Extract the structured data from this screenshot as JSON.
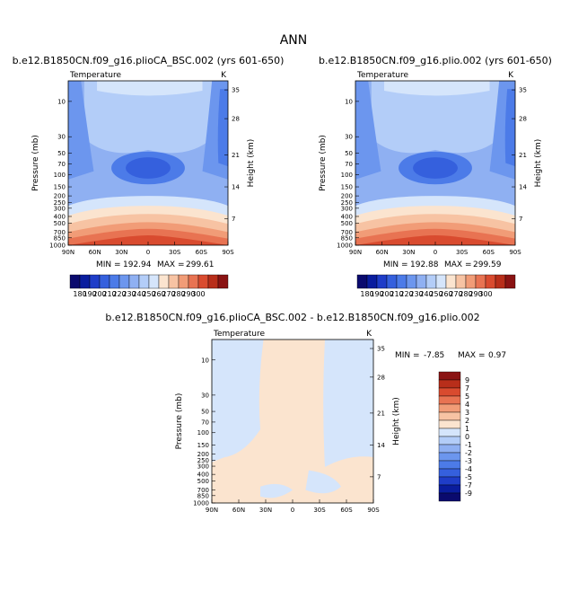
{
  "figure": {
    "title": "ANN",
    "colors": {
      "scale_main": [
        "#0a0a6e",
        "#0a1d9e",
        "#1f3dc8",
        "#3560dd",
        "#4c7be8",
        "#6c96ee",
        "#8fb0f2",
        "#b3cdf8",
        "#d5e5fb",
        "#fbe4cf",
        "#f7c3a3",
        "#f19c77",
        "#e87352",
        "#d94b2f",
        "#b82e1a",
        "#8a1313"
      ],
      "scale_diff": [
        "#0a0a6e",
        "#0a1d9e",
        "#1f3dc8",
        "#3560dd",
        "#4c7be8",
        "#6c96ee",
        "#8fb0f2",
        "#b3cdf8",
        "#d5e5fb",
        "#fbe4cf",
        "#f7c3a3",
        "#f19c77",
        "#e87352",
        "#d94b2f",
        "#b82e1a",
        "#8a1313"
      ]
    }
  },
  "chart_data": [
    {
      "type": "heatmap",
      "title": "b.e12.B1850CN.f09_g16.plioCA_BSC.002 (yrs 601-650)",
      "field_label": "Temperature",
      "units": "K",
      "xlabel": "",
      "ylabel": "Pressure (mb)",
      "ylabel_right": "Height (km)",
      "x_ticks": [
        "90N",
        "60N",
        "30N",
        "0",
        "30S",
        "60S",
        "90S"
      ],
      "y_ticks": [
        "10",
        "30",
        "50",
        "70",
        "100",
        "150",
        "200",
        "250",
        "300",
        "400",
        "500",
        "700",
        "850",
        "1000"
      ],
      "y_ticks_right": [
        "35",
        "28",
        "21",
        "14",
        "7"
      ],
      "ylim": [
        1000,
        3.5
      ],
      "min_label": "MIN =",
      "min": "192.94",
      "max_label": "MAX =",
      "max": "299.61",
      "colorbar_labels": [
        "180",
        "190",
        "200",
        "210",
        "220",
        "230",
        "240",
        "250",
        "260",
        "270",
        "280",
        "290",
        "300"
      ]
    },
    {
      "type": "heatmap",
      "title": "b.e12.B1850CN.f09_g16.plio.002 (yrs 601-650)",
      "field_label": "Temperature",
      "units": "K",
      "xlabel": "",
      "ylabel": "Pressure (mb)",
      "ylabel_right": "Height (km)",
      "x_ticks": [
        "90N",
        "60N",
        "30N",
        "0",
        "30S",
        "60S",
        "90S"
      ],
      "y_ticks": [
        "10",
        "30",
        "50",
        "70",
        "100",
        "150",
        "200",
        "250",
        "300",
        "400",
        "500",
        "700",
        "850",
        "1000"
      ],
      "y_ticks_right": [
        "35",
        "28",
        "21",
        "14",
        "7"
      ],
      "ylim": [
        1000,
        3.5
      ],
      "min_label": "MIN =",
      "min": "192.88",
      "max_label": "MAX =",
      "max": "299.59",
      "colorbar_labels": [
        "180",
        "190",
        "200",
        "210",
        "220",
        "230",
        "240",
        "250",
        "260",
        "270",
        "280",
        "290",
        "300"
      ]
    },
    {
      "type": "heatmap",
      "title": "b.e12.B1850CN.f09_g16.plioCA_BSC.002 - b.e12.B1850CN.f09_g16.plio.002",
      "field_label": "Temperature",
      "units": "K",
      "xlabel": "",
      "ylabel": "Pressure (mb)",
      "ylabel_right": "Height (km)",
      "x_ticks": [
        "90N",
        "60N",
        "30N",
        "0",
        "30S",
        "60S",
        "90S"
      ],
      "y_ticks": [
        "10",
        "30",
        "50",
        "70",
        "100",
        "150",
        "200",
        "250",
        "300",
        "400",
        "500",
        "700",
        "850",
        "1000"
      ],
      "y_ticks_right": [
        "35",
        "28",
        "21",
        "14",
        "7"
      ],
      "ylim": [
        1000,
        3.5
      ],
      "min_label": "MIN =",
      "min": "-7.85",
      "max_label": "MAX =",
      "max": "0.97",
      "colorbar_labels": [
        "9",
        "7",
        "5",
        "4",
        "3",
        "2",
        "1",
        "0",
        "-1",
        "-2",
        "-3",
        "-4",
        "-5",
        "-7",
        "-9"
      ]
    }
  ]
}
